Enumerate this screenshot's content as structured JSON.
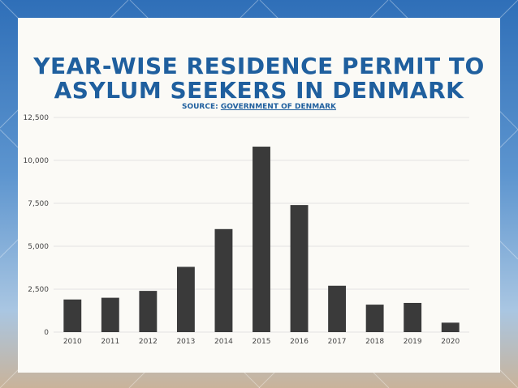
{
  "theme": {
    "title_color": "#1f5f9e",
    "bar_color": "#3a3a3a",
    "grid_color": "#e3e3e3",
    "card_bg": "#fbfaf6"
  },
  "header": {
    "title_line1": "YEAR-WISE RESIDENCE PERMIT TO",
    "title_line2": "ASYLUM SEEKERS IN DENMARK",
    "source_prefix": "SOURCE: ",
    "source_link": "GOVERNMENT OF DENMARK"
  },
  "chart_data": {
    "type": "bar",
    "title": "YEAR-WISE RESIDENCE PERMIT TO ASYLUM SEEKERS IN DENMARK",
    "categories": [
      "2010",
      "2011",
      "2012",
      "2013",
      "2014",
      "2015",
      "2016",
      "2017",
      "2018",
      "2019",
      "2020"
    ],
    "values": [
      1900,
      2000,
      2400,
      3800,
      6000,
      10800,
      7400,
      2700,
      1600,
      1700,
      550
    ],
    "ylim": [
      0,
      12500
    ],
    "yticks": [
      0,
      2500,
      5000,
      7500,
      10000,
      12500
    ],
    "ytick_labels": [
      "0",
      "2,500",
      "5,000",
      "7,500",
      "10,000",
      "12,500"
    ],
    "grid": true,
    "xlabel": "",
    "ylabel": ""
  }
}
